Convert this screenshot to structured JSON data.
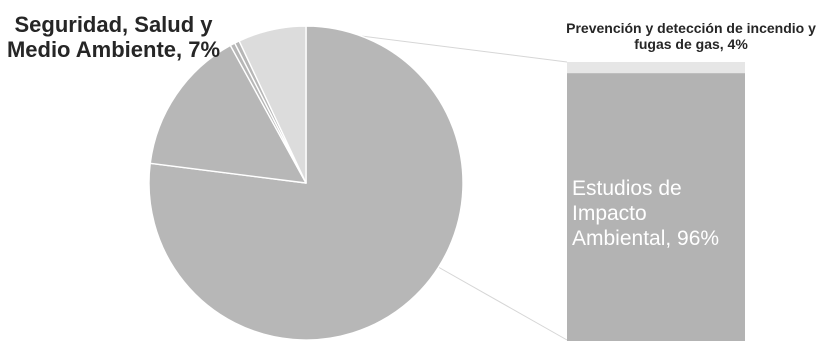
{
  "chart_data": [
    {
      "type": "pie",
      "slices": [
        {
          "name": "",
          "value": 77
        },
        {
          "name": "",
          "value": 15
        },
        {
          "name": "",
          "value": 0.5
        },
        {
          "name": "",
          "value": 0.5
        },
        {
          "name": "Seguridad, Salud y Medio Ambiente",
          "value": 7
        }
      ],
      "labels": {
        "seguridad": "Seguridad, Salud y Medio Ambiente, 7%"
      },
      "colors": {
        "slice": "#b7b7b7",
        "highlight": "#dcdcdc",
        "edge": "#ffffff"
      }
    },
    {
      "type": "bar",
      "stacked": true,
      "segments": [
        {
          "name": "Prevención y detección de incendio y fugas de gas",
          "value": 4
        },
        {
          "name": "Estudios de Impacto Ambiental",
          "value": 96
        }
      ],
      "labels": {
        "prevencion": "Prevención y detección de incendio y fugas de gas, 4%",
        "estudios": "Estudios de Impacto Ambiental, 96%"
      },
      "colors": {
        "top": "#e6e6e6",
        "main": "#b3b3b3",
        "connector": "#d6d6d6"
      }
    }
  ]
}
